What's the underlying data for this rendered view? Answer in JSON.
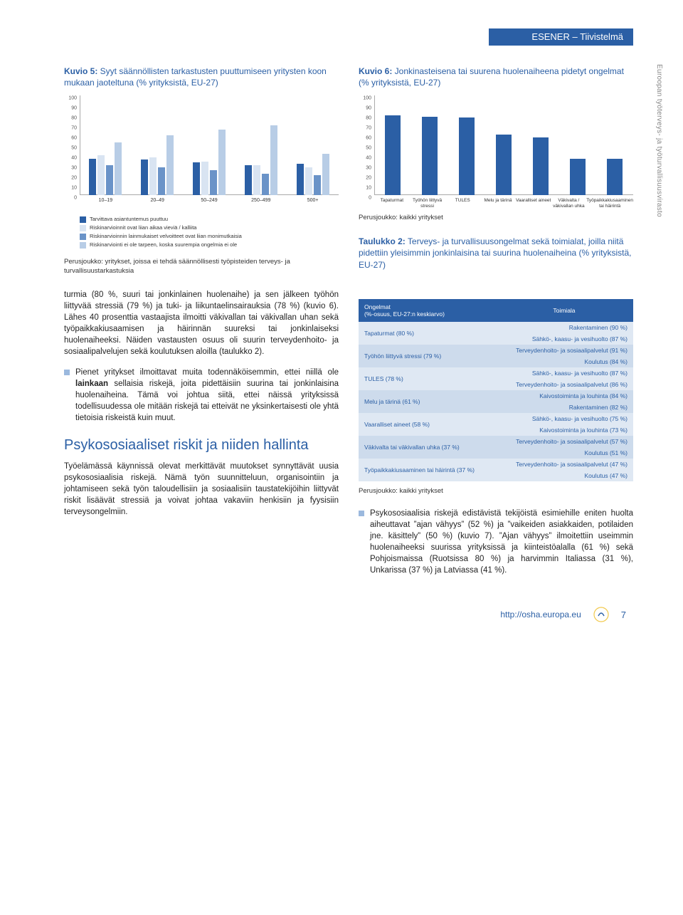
{
  "header": {
    "title": "ESENER – Tiivistelmä"
  },
  "sidebar_vertical": "Euroopan työterveys- ja työturvallisuusvirasto",
  "chart5": {
    "title_prefix": "Kuvio 5:",
    "title_text": " Syyt säännöllisten tarkastusten puuttumiseen yritysten koon mukaan jaoteltuna (% yrityksistä, EU-27)",
    "ticks": [
      0,
      10,
      20,
      30,
      40,
      50,
      60,
      70,
      80,
      90,
      100
    ],
    "categories": [
      "10–19",
      "20–49",
      "50–249",
      "250–499",
      "500+"
    ],
    "series_colors": [
      "#2b5fa5",
      "#d9e4f2",
      "#6a93c8",
      "#b8cde6"
    ],
    "data": [
      [
        37,
        40,
        30,
        53
      ],
      [
        36,
        38,
        28,
        60
      ],
      [
        33,
        34,
        25,
        66
      ],
      [
        30,
        30,
        22,
        70
      ],
      [
        32,
        28,
        20,
        42
      ]
    ],
    "legend": [
      {
        "color": "#2b5fa5",
        "label": "Tarvittava asiantuntemus puuttuu"
      },
      {
        "color": "#d9e4f2",
        "label": "Riskinarvioinnit ovat liian aikaa vieviä / kalliita"
      },
      {
        "color": "#6a93c8",
        "label": "Riskinarvioinnin lainmukaiset velvoitteet ovat liian monimutkaisia"
      },
      {
        "color": "#b8cde6",
        "label": "Riskinarviointi ei ole tarpeen, koska suurempia ongelmia ei ole"
      }
    ],
    "caption": "Perusjoukko: yritykset, joissa ei tehdä säännöllisesti työpisteiden terveys- ja turvallisuustarkastuksia"
  },
  "chart6": {
    "title_prefix": "Kuvio 6:",
    "title_text": " Jonkinasteisena tai suurena huolenaiheena pidetyt ongelmat (% yrityksistä, EU-27)",
    "ticks": [
      0,
      10,
      20,
      30,
      40,
      50,
      60,
      70,
      80,
      90,
      100
    ],
    "categories": [
      "Tapaturmat",
      "Työhön liittyvä stressi",
      "TULES",
      "Melu ja tärinä",
      "Vaaralliset aineet",
      "Väkivalta / väkivallan uhka",
      "Työpaikkakiusaaminen tai häirintä"
    ],
    "color": "#2b5fa5",
    "values": [
      80,
      79,
      78,
      61,
      58,
      37,
      37
    ],
    "caption": "Perusjoukko: kaikki yritykset"
  },
  "table2_title_prefix": "Taulukko 2:",
  "table2_title_text": " Terveys- ja turvallisuusongelmat sekä toimialat, joilla niitä pidettiin yleisimmin jonkinlaisina tai suurina huolenaiheina (% yrityksistä, EU-27)",
  "table2": {
    "head": [
      "Ongelmat\n(%-osuus, EU-27:n keskiarvo)",
      "Toimiala"
    ],
    "rows": [
      {
        "problem": "Tapaturmat (80 %)",
        "sectors": [
          "Rakentaminen (90 %)",
          "Sähkö-, kaasu- ja vesihuolto (87 %)"
        ]
      },
      {
        "problem": "Työhön liittyvä stressi (79 %)",
        "sectors": [
          "Terveydenhoito- ja sosiaalipalvelut (91 %)",
          "Koulutus (84 %)"
        ]
      },
      {
        "problem": "TULES (78 %)",
        "sectors": [
          "Sähkö-, kaasu- ja vesihuolto (87 %)",
          "Terveydenhoito- ja sosiaalipalvelut (86 %)"
        ]
      },
      {
        "problem": "Melu ja tärinä (61 %)",
        "sectors": [
          "Kaivostoiminta ja louhinta (84 %)",
          "Rakentaminen (82 %)"
        ]
      },
      {
        "problem": "Vaaralliset aineet (58 %)",
        "sectors": [
          "Sähkö-, kaasu- ja vesihuolto (75 %)",
          "Kaivostoiminta ja louhinta (73 %)"
        ]
      },
      {
        "problem": "Väkivalta tai väkivallan uhka (37 %)",
        "sectors": [
          "Terveydenhoito- ja sosiaalipalvelut (57 %)",
          "Koulutus (51 %)"
        ]
      },
      {
        "problem": "Työpaikkakiusaaminen tai häirintä (37 %)",
        "sectors": [
          "Terveydenhoito- ja sosiaalipalvelut (47 %)",
          "Koulutus (47 %)"
        ]
      }
    ],
    "caption": "Perusjoukko: kaikki yritykset"
  },
  "left_body": {
    "p1": "turmia (80 %, suuri tai jonkinlainen huolenaihe) ja sen jälkeen työhön liittyvää stressiä (79 %) ja tuki- ja liikuntaelinsairauksia (78 %) (kuvio 6). Lähes 40 prosenttia vastaajista ilmoitti väkivallan tai väkivallan uhan sekä työpaikkakiusaamisen ja häirinnän suureksi tai jonkinlaiseksi huolenaiheeksi. Näiden vastausten osuus oli suurin terveydenhoito- ja sosiaalipalvelujen sekä koulutuksen aloilla (taulukko 2).",
    "bullet1": "Pienet yritykset ilmoittavat muita todennäköisemmin, ettei niillä ole lainkaan sellaisia riskejä, joita pidettäisiin suurina tai jonkinlaisina huolenaiheina. Tämä voi johtua siitä, ettei näissä yrityksissä todellisuudessa ole mitään riskejä tai etteivät ne yksinkertaisesti ole yhtä tietoisia riskeistä kuin muut.",
    "h2": "Psykososiaaliset riskit ja niiden hallinta",
    "p2": "Työelämässä käynnissä olevat merkittävät muutokset synnyttävät uusia psykososiaalisia riskejä. Nämä työn suunnitteluun, organisointiin ja johtamiseen sekä työn taloudellisiin ja sosiaalisiin taustatekijöihin liittyvät riskit lisäävät stressiä ja voivat johtaa vakaviin henkisiin ja fyysisiin terveysongelmiin."
  },
  "right_body": {
    "bullet2": "Psykososiaalisia riskejä edistävistä tekijöistä esimiehille eniten huolta aiheuttavat ”ajan vähyys” (52 %) ja ”vaikeiden asiakkaiden, potilaiden jne. käsittely” (50 %) (kuvio 7). ”Ajan vähyys” ilmoitettiin useimmin huolenaiheeksi suurissa yrityksissä ja kiinteistöalalla (61 %) sekä Pohjoismaissa (Ruotsissa 80 %) ja harvimmin Italiassa (31 %), Unkarissa (37 %) ja Latviassa (41 %)."
  },
  "footer": {
    "url": "http://osha.europa.eu",
    "page": "7"
  }
}
